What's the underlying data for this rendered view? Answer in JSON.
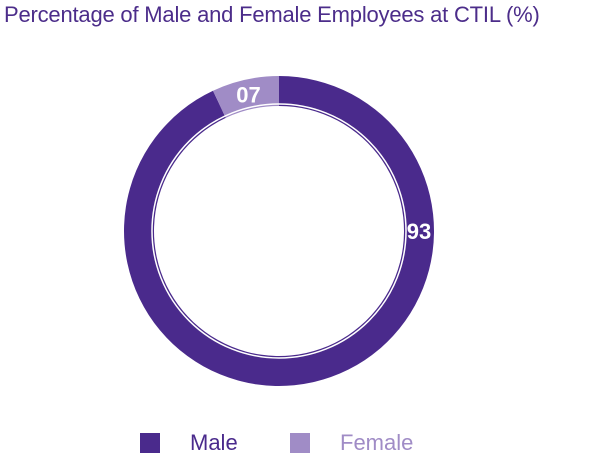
{
  "chart_data": {
    "type": "pie",
    "variant": "donut",
    "title": "Percentage of Male and Female Employees at CTIL (%)",
    "categories": [
      "Male",
      "Female"
    ],
    "values": [
      93,
      7
    ],
    "data_labels": [
      "93",
      "07"
    ],
    "colors": [
      "#4a2a8c",
      "#a08cc6"
    ],
    "legend_placement": "bottom-center",
    "unit": "%"
  }
}
